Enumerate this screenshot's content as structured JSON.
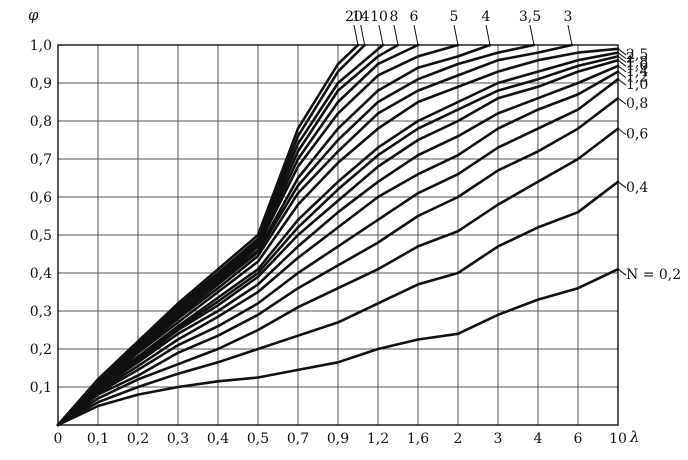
{
  "chart_data": {
    "type": "line",
    "title": "",
    "xlabel": "λ",
    "ylabel": "φ",
    "x_ticks": [
      "0",
      "0,1",
      "0,2",
      "0,3",
      "0,4",
      "0,5",
      "0,7",
      "0,9",
      "1,2",
      "1,6",
      "2",
      "3",
      "4",
      "6",
      "10"
    ],
    "y_ticks": [
      "0,1",
      "0,2",
      "0,3",
      "0,4",
      "0,5",
      "0,6",
      "0,7",
      "0,8",
      "0,9",
      "1,0"
    ],
    "ylim": [
      0,
      1.0
    ],
    "grid": true,
    "series_prefix": "N = ",
    "series": [
      {
        "name": "0,2",
        "x": [
          0,
          0.1,
          0.2,
          0.3,
          0.4,
          0.5,
          0.7,
          0.9,
          1.2,
          1.6,
          2,
          3,
          4,
          6,
          10
        ],
        "y": [
          0,
          0.05,
          0.08,
          0.1,
          0.115,
          0.125,
          0.145,
          0.165,
          0.2,
          0.225,
          0.24,
          0.29,
          0.33,
          0.36,
          0.41
        ]
      },
      {
        "name": "0,4",
        "x": [
          0,
          0.1,
          0.2,
          0.3,
          0.4,
          0.5,
          0.7,
          0.9,
          1.2,
          1.6,
          2,
          3,
          4,
          6,
          10
        ],
        "y": [
          0,
          0.06,
          0.1,
          0.135,
          0.165,
          0.2,
          0.235,
          0.27,
          0.32,
          0.37,
          0.4,
          0.47,
          0.52,
          0.56,
          0.64
        ]
      },
      {
        "name": "0,6",
        "x": [
          0,
          0.1,
          0.2,
          0.3,
          0.4,
          0.5,
          0.7,
          0.9,
          1.2,
          1.6,
          2,
          3,
          4,
          6,
          10
        ],
        "y": [
          0,
          0.07,
          0.12,
          0.16,
          0.2,
          0.25,
          0.31,
          0.36,
          0.41,
          0.47,
          0.51,
          0.58,
          0.64,
          0.7,
          0.78
        ]
      },
      {
        "name": "0,8",
        "x": [
          0,
          0.1,
          0.2,
          0.3,
          0.4,
          0.5,
          0.7,
          0.9,
          1.2,
          1.6,
          2,
          3,
          4,
          6,
          10
        ],
        "y": [
          0,
          0.08,
          0.13,
          0.19,
          0.235,
          0.29,
          0.36,
          0.42,
          0.48,
          0.55,
          0.6,
          0.67,
          0.72,
          0.78,
          0.86
        ]
      },
      {
        "name": "1,0",
        "x": [
          0,
          0.1,
          0.2,
          0.3,
          0.4,
          0.5,
          0.7,
          0.9,
          1.2,
          1.6,
          2,
          3,
          4,
          6,
          10
        ],
        "y": [
          0,
          0.085,
          0.145,
          0.21,
          0.26,
          0.32,
          0.4,
          0.47,
          0.54,
          0.61,
          0.66,
          0.73,
          0.78,
          0.83,
          0.91
        ]
      },
      {
        "name": "1,2",
        "x": [
          0,
          0.1,
          0.2,
          0.3,
          0.4,
          0.5,
          0.7,
          0.9,
          1.2,
          1.6,
          2,
          3,
          4,
          6,
          10
        ],
        "y": [
          0,
          0.09,
          0.155,
          0.225,
          0.285,
          0.35,
          0.44,
          0.52,
          0.6,
          0.66,
          0.71,
          0.78,
          0.83,
          0.87,
          0.93
        ]
      },
      {
        "name": "1,4",
        "x": [
          0,
          0.1,
          0.2,
          0.3,
          0.4,
          0.5,
          0.7,
          0.9,
          1.2,
          1.6,
          2,
          3,
          4,
          6,
          10
        ],
        "y": [
          0,
          0.095,
          0.165,
          0.24,
          0.3,
          0.37,
          0.47,
          0.56,
          0.64,
          0.71,
          0.76,
          0.82,
          0.86,
          0.9,
          0.945
        ]
      },
      {
        "name": "1,6",
        "x": [
          0,
          0.1,
          0.2,
          0.3,
          0.4,
          0.5,
          0.7,
          0.9,
          1.2,
          1.6,
          2,
          3,
          4,
          6,
          10
        ],
        "y": [
          0,
          0.1,
          0.17,
          0.25,
          0.315,
          0.39,
          0.5,
          0.59,
          0.68,
          0.75,
          0.8,
          0.86,
          0.89,
          0.93,
          0.96
        ]
      },
      {
        "name": "1,8",
        "x": [
          0,
          0.1,
          0.2,
          0.3,
          0.4,
          0.5,
          0.7,
          0.9,
          1.2,
          1.6,
          2,
          3,
          4,
          6,
          10
        ],
        "y": [
          0,
          0.1,
          0.175,
          0.255,
          0.325,
          0.4,
          0.52,
          0.62,
          0.71,
          0.78,
          0.83,
          0.88,
          0.91,
          0.945,
          0.97
        ]
      },
      {
        "name": "2",
        "x": [
          0,
          0.1,
          0.2,
          0.3,
          0.4,
          0.5,
          0.7,
          0.9,
          1.2,
          1.6,
          2,
          3,
          4,
          6,
          10
        ],
        "y": [
          0,
          0.105,
          0.18,
          0.26,
          0.335,
          0.41,
          0.54,
          0.64,
          0.73,
          0.8,
          0.85,
          0.9,
          0.93,
          0.96,
          0.98
        ]
      },
      {
        "name": "2,5",
        "x": [
          0,
          0.1,
          0.2,
          0.3,
          0.4,
          0.5,
          0.7,
          0.9,
          1.2,
          1.6,
          2,
          3,
          4,
          6,
          10
        ],
        "y": [
          0,
          0.105,
          0.19,
          0.27,
          0.35,
          0.43,
          0.58,
          0.69,
          0.78,
          0.85,
          0.89,
          0.93,
          0.96,
          0.98,
          0.99
        ]
      },
      {
        "name": "3",
        "x": [
          0,
          0.1,
          0.2,
          0.3,
          0.4,
          0.5,
          0.7,
          0.9,
          1.2,
          1.6,
          2,
          3,
          4,
          5.7
        ],
        "y": [
          0,
          0.11,
          0.195,
          0.28,
          0.36,
          0.445,
          0.61,
          0.72,
          0.82,
          0.88,
          0.92,
          0.96,
          0.98,
          1.0
        ]
      },
      {
        "name": "3,5",
        "x": [
          0,
          0.1,
          0.2,
          0.3,
          0.4,
          0.5,
          0.7,
          0.9,
          1.2,
          1.6,
          2,
          3,
          3.9
        ],
        "y": [
          0,
          0.11,
          0.2,
          0.285,
          0.37,
          0.455,
          0.63,
          0.75,
          0.85,
          0.91,
          0.95,
          0.98,
          1.0
        ]
      },
      {
        "name": "4",
        "x": [
          0,
          0.1,
          0.2,
          0.3,
          0.4,
          0.5,
          0.7,
          0.9,
          1.2,
          1.6,
          2,
          2.8
        ],
        "y": [
          0,
          0.11,
          0.205,
          0.29,
          0.375,
          0.46,
          0.65,
          0.78,
          0.88,
          0.94,
          0.97,
          1.0
        ]
      },
      {
        "name": "5",
        "x": [
          0,
          0.1,
          0.2,
          0.3,
          0.4,
          0.5,
          0.7,
          0.9,
          1.2,
          1.6,
          2.0
        ],
        "y": [
          0,
          0.11,
          0.21,
          0.295,
          0.38,
          0.47,
          0.68,
          0.82,
          0.92,
          0.97,
          1.0
        ]
      },
      {
        "name": "6",
        "x": [
          0,
          0.1,
          0.2,
          0.3,
          0.4,
          0.5,
          0.7,
          0.9,
          1.2,
          1.6
        ],
        "y": [
          0,
          0.115,
          0.21,
          0.3,
          0.385,
          0.475,
          0.7,
          0.85,
          0.95,
          1.0
        ]
      },
      {
        "name": "8",
        "x": [
          0,
          0.1,
          0.2,
          0.3,
          0.4,
          0.5,
          0.7,
          0.9,
          1.2,
          1.4
        ],
        "y": [
          0,
          0.115,
          0.215,
          0.305,
          0.39,
          0.48,
          0.72,
          0.88,
          0.97,
          1.0
        ]
      },
      {
        "name": "10",
        "x": [
          0,
          0.1,
          0.2,
          0.3,
          0.4,
          0.5,
          0.7,
          0.9,
          1.25
        ],
        "y": [
          0,
          0.115,
          0.215,
          0.31,
          0.395,
          0.485,
          0.74,
          0.9,
          1.0
        ]
      },
      {
        "name": "14",
        "x": [
          0,
          0.1,
          0.2,
          0.3,
          0.4,
          0.5,
          0.7,
          0.9,
          1.1
        ],
        "y": [
          0,
          0.12,
          0.22,
          0.315,
          0.4,
          0.49,
          0.76,
          0.93,
          1.0
        ]
      },
      {
        "name": "20",
        "x": [
          0,
          0.1,
          0.2,
          0.3,
          0.4,
          0.5,
          0.7,
          0.9,
          1.05
        ],
        "y": [
          0,
          0.12,
          0.22,
          0.32,
          0.41,
          0.5,
          0.78,
          0.95,
          1.0
        ]
      }
    ],
    "legend": "inline curve labels"
  }
}
